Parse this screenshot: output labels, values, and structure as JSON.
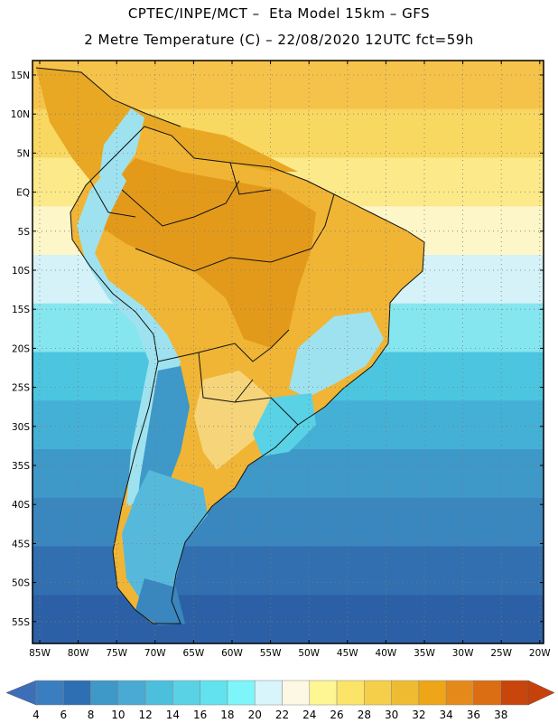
{
  "header": {
    "title_line1": "CPTEC/INPE/MCT –  Eta Model 15km – GFS",
    "title_line2": "2 Metre Temperature (C) – 22/08/2020 12UTC fct=59h"
  },
  "map": {
    "lat_labels": [
      "15N",
      "10N",
      "5N",
      "EQ",
      "5S",
      "10S",
      "15S",
      "20S",
      "25S",
      "30S",
      "35S",
      "40S",
      "45S",
      "50S",
      "55S"
    ],
    "lon_labels": [
      "85W",
      "80W",
      "75W",
      "70W",
      "65W",
      "60W",
      "55W",
      "50W",
      "45W",
      "40W",
      "35W",
      "30W",
      "25W",
      "20W"
    ],
    "ocean_bands_color_order": [
      "#f5c34a",
      "#f8d860",
      "#fbe98a",
      "#fdf6c8",
      "#d4f2f7",
      "#86e6ef",
      "#4cc6e0",
      "#45b0d6",
      "#3e98c8",
      "#3a86bf",
      "#326fb0",
      "#2c60a6"
    ],
    "land_colors": {
      "amazon": "#e39a1a",
      "central": "#f0b535",
      "highlands": "#9fe2ef",
      "andes": "#56b9dc",
      "patagonia": "#3a86bf"
    }
  },
  "colorbar": {
    "labels": [
      "4",
      "6",
      "8",
      "10",
      "12",
      "14",
      "16",
      "18",
      "20",
      "22",
      "24",
      "26",
      "28",
      "30",
      "32",
      "34",
      "36",
      "38"
    ],
    "colors": [
      "#3a7ec0",
      "#2e6eb3",
      "#3e98c8",
      "#4aaad4",
      "#4cbfdc",
      "#59d2e6",
      "#62e2ef",
      "#7df5fa",
      "#d7f5fb",
      "#fdf8e4",
      "#fef593",
      "#fbe468",
      "#f5cf49",
      "#efbc31",
      "#efa518",
      "#e58a1a",
      "#db6d13",
      "#c8450c"
    ],
    "left_arrow_color": "#3d6fb8",
    "right_arrow_color": "#c8410a"
  }
}
